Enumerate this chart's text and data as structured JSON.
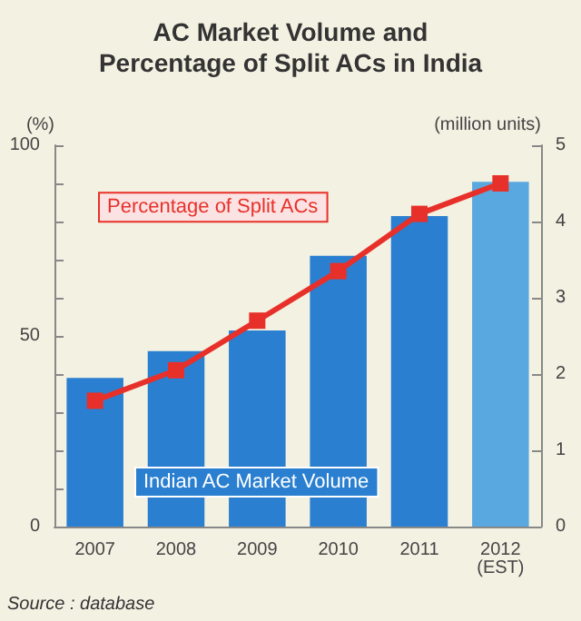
{
  "chart_data": {
    "type": "bar",
    "title": "AC Market Volume and\nPercentage of Split ACs in India",
    "ylabel": "(%)",
    "y2label": "(million units)",
    "annotations": [
      "Source : database"
    ],
    "categories": [
      "2007",
      "2008",
      "2009",
      "2010",
      "2011",
      "2012\n(EST)"
    ],
    "series": [
      {
        "name": "Indian AC Market Volume",
        "axis": "y2",
        "color": "#2a7fd0",
        "colors": [
          "#2a7fd0",
          "#2a7fd0",
          "#2a7fd0",
          "#2a7fd0",
          "#2a7fd0",
          "#5aa8e0"
        ],
        "values": [
          1.95,
          2.3,
          2.57,
          3.55,
          4.07,
          4.52
        ]
      },
      {
        "name": "Percentage of Split ACs",
        "type": "line",
        "color": "#e8302a",
        "marker": "square",
        "values": [
          33,
          41,
          54,
          67,
          82,
          90
        ]
      }
    ],
    "ylim": [
      0,
      100
    ],
    "yticks": [
      0,
      {
        "value": 10,
        "label": null
      },
      {
        "value": 20,
        "label": null
      },
      {
        "value": 30,
        "label": null
      },
      {
        "value": 40,
        "label": null
      },
      50,
      {
        "value": 60,
        "label": null
      },
      {
        "value": 70,
        "label": null
      },
      {
        "value": 80,
        "label": null
      },
      {
        "value": 90,
        "label": null
      },
      100
    ],
    "y2lim": [
      0,
      5
    ],
    "y2ticks": [
      0,
      1,
      2,
      3,
      4,
      5
    ],
    "grid": false,
    "legend": false
  }
}
